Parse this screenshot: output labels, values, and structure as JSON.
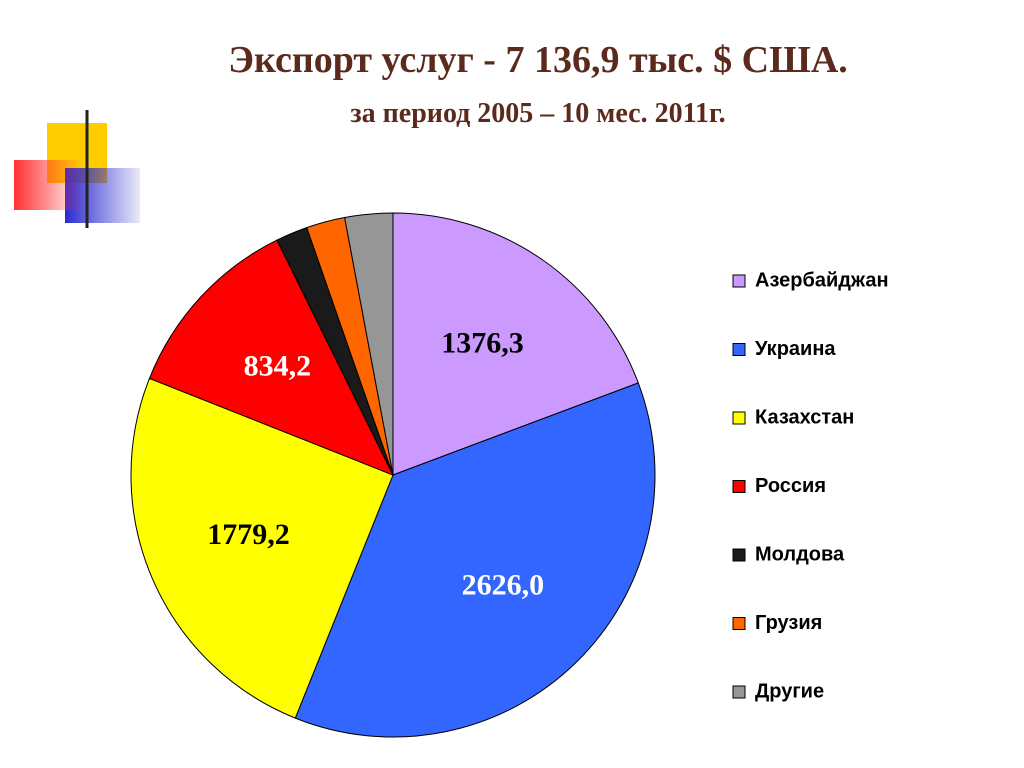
{
  "chart_data": {
    "type": "pie",
    "title": "Экспорт услуг - 7 136,9 тыс. $ США.",
    "subtitle": "за период 2005 – 10 мес. 2011г.",
    "categories": [
      "Азербайджан",
      "Украина",
      "Казахстан",
      "Россия",
      "Молдова",
      "Грузия",
      "Другие"
    ],
    "values": [
      1376.3,
      2626.0,
      1779.2,
      834.2,
      140,
      170,
      211
    ],
    "value_labels": [
      "1376,3",
      "2626,0",
      "1779,2",
      "834,2",
      null,
      null,
      null
    ],
    "colors": [
      "#cc99ff",
      "#3366ff",
      "#ffff00",
      "#ff0000",
      "#1a1a1a",
      "#ff6600",
      "#969696"
    ],
    "legend": "right"
  }
}
